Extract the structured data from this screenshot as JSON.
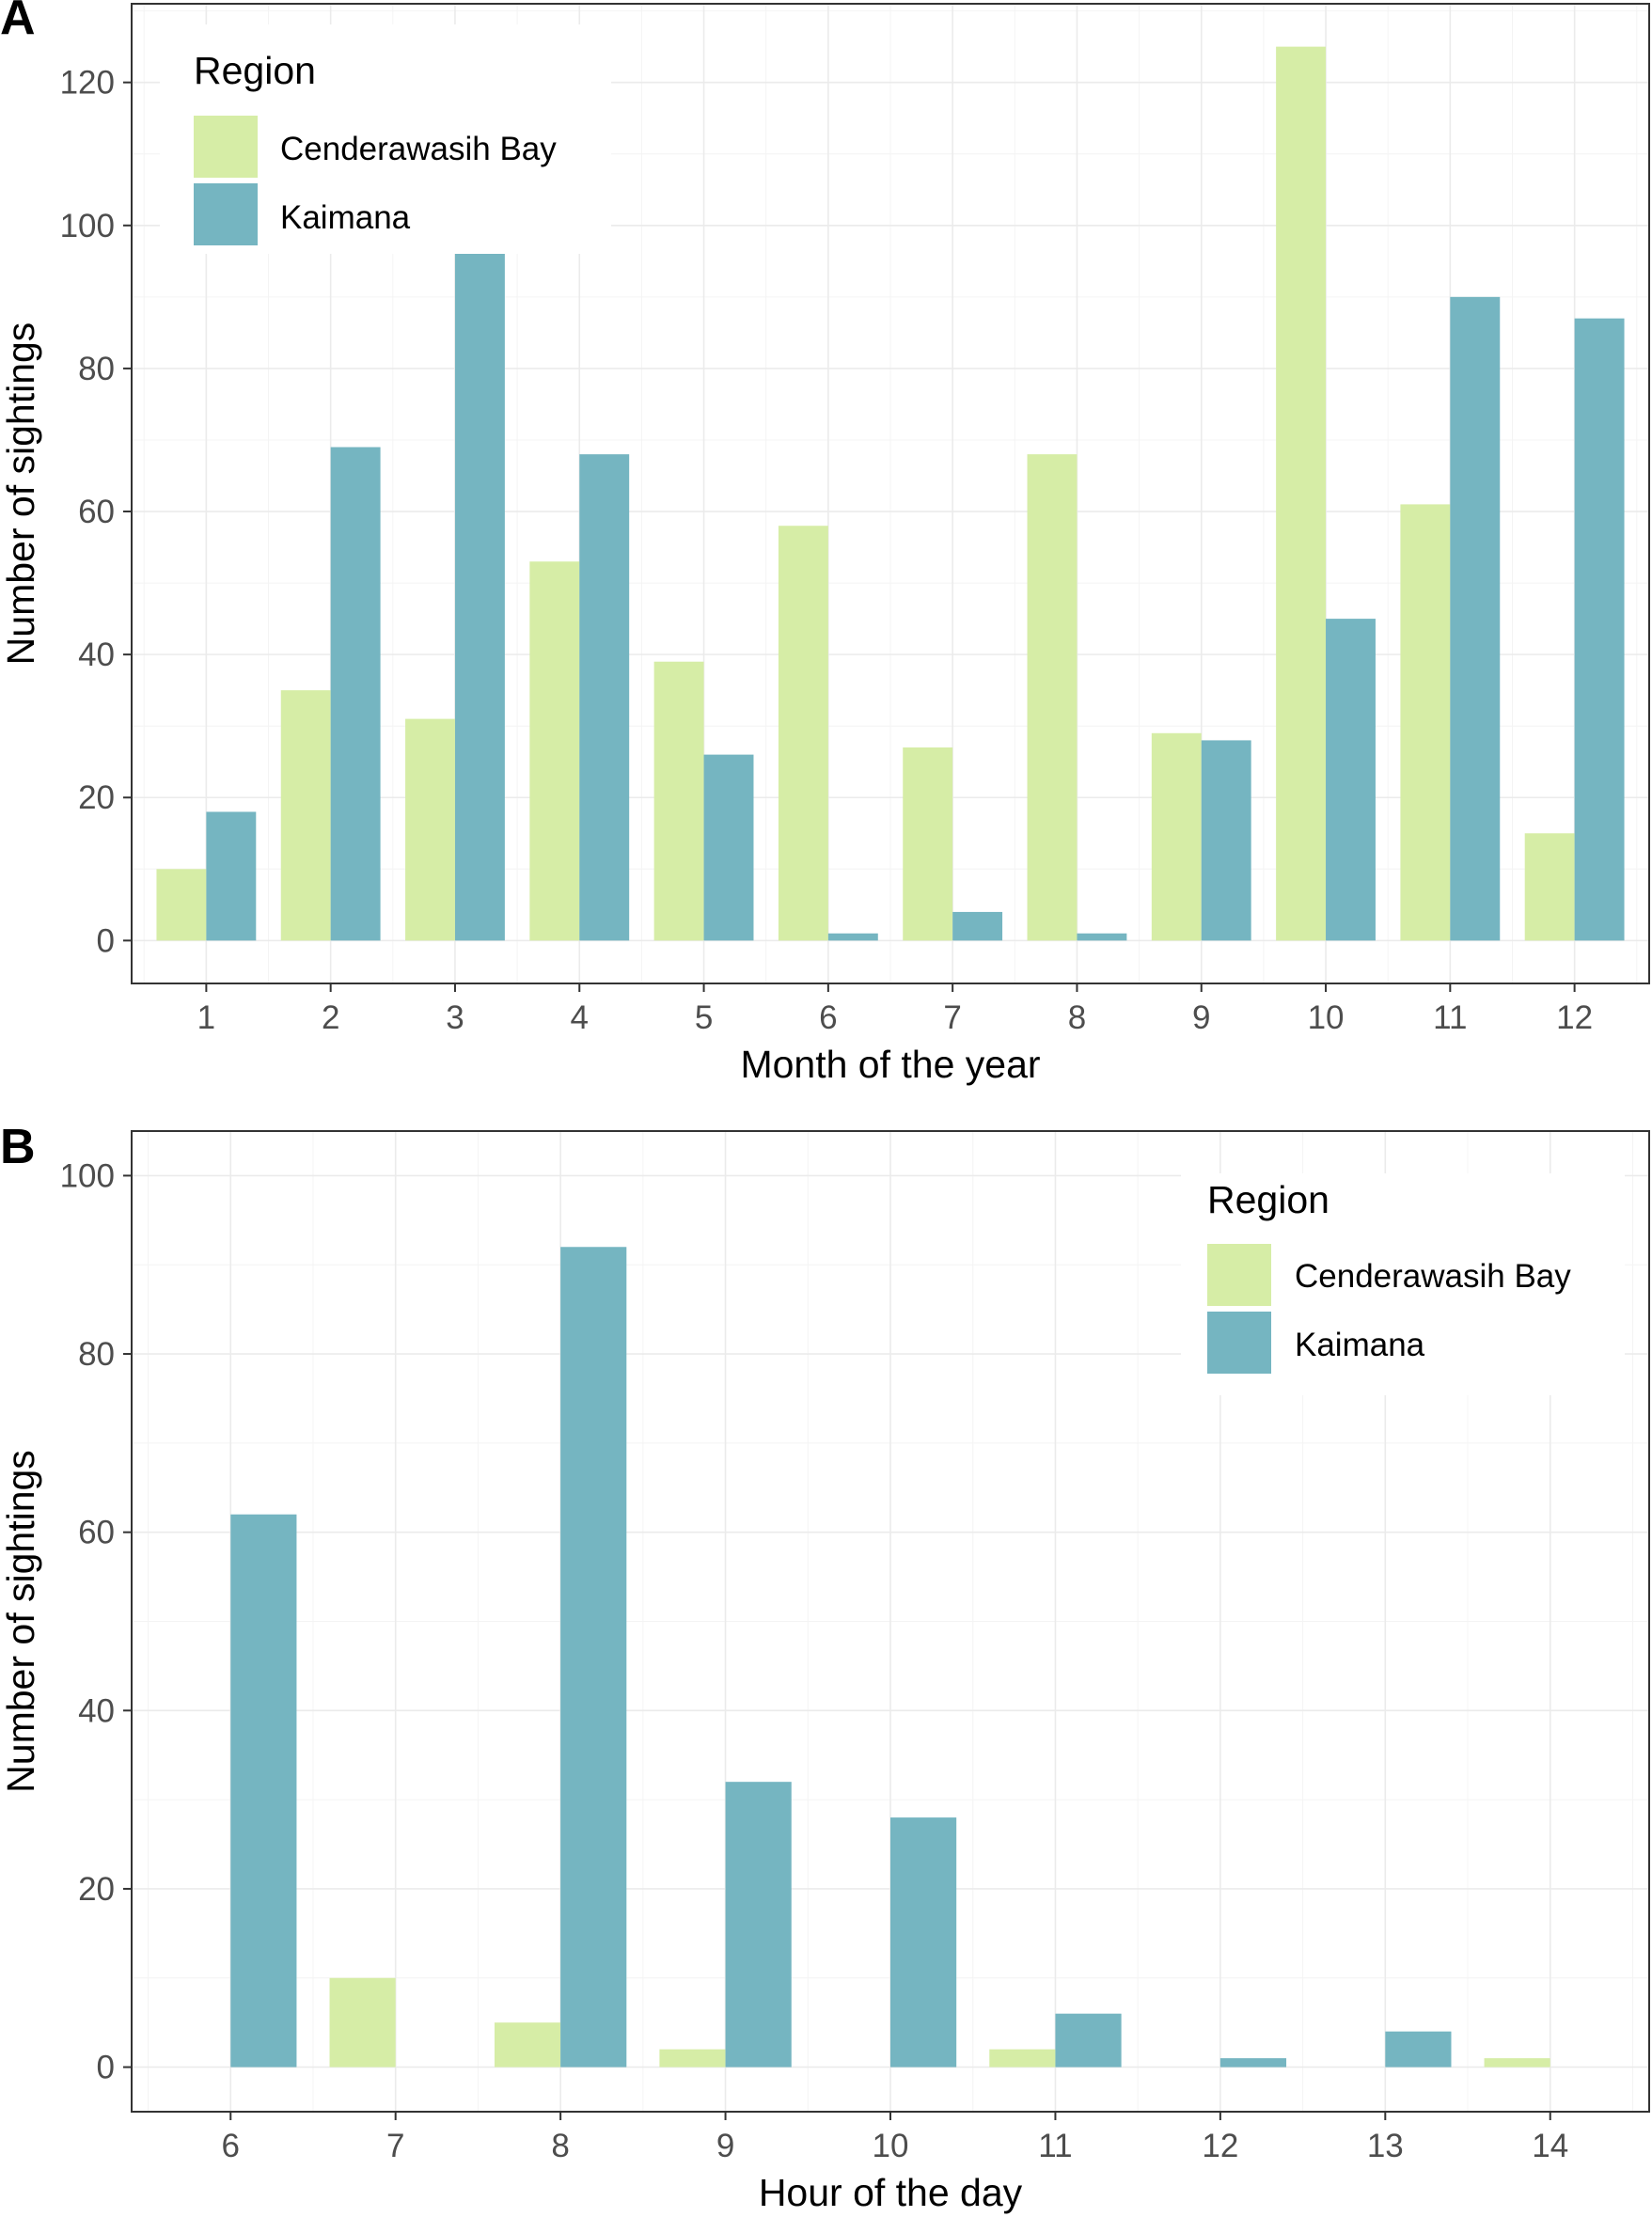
{
  "colors": {
    "Cenderawasih Bay": "#d6eda6",
    "Kaimana": "#75b5c1"
  },
  "chart_data": [
    {
      "panel": "A",
      "type": "bar",
      "xlabel": "Month of the year",
      "ylabel": "Number of sightings",
      "categories": [
        "1",
        "2",
        "3",
        "4",
        "5",
        "6",
        "7",
        "8",
        "9",
        "10",
        "11",
        "12"
      ],
      "series": [
        {
          "name": "Cenderawasih Bay",
          "values": [
            10,
            35,
            31,
            53,
            39,
            58,
            27,
            68,
            29,
            125,
            61,
            15
          ]
        },
        {
          "name": "Kaimana",
          "values": [
            18,
            69,
            97,
            68,
            26,
            1,
            4,
            1,
            28,
            45,
            90,
            87
          ]
        }
      ],
      "ylim": [
        -6,
        131
      ],
      "yticks": [
        0,
        20,
        40,
        60,
        80,
        100,
        120
      ],
      "legend": {
        "title": "Region",
        "entries": [
          "Cenderawasih Bay",
          "Kaimana"
        ],
        "position": "top-left"
      }
    },
    {
      "panel": "B",
      "type": "bar",
      "xlabel": "Hour of the day",
      "ylabel": "Number of sightings",
      "categories": [
        "6",
        "7",
        "8",
        "9",
        "10",
        "11",
        "12",
        "13",
        "14"
      ],
      "series": [
        {
          "name": "Cenderawasih Bay",
          "values": [
            0,
            10,
            5,
            2,
            0,
            2,
            0,
            0,
            1
          ]
        },
        {
          "name": "Kaimana",
          "values": [
            62,
            0,
            92,
            32,
            28,
            6,
            1,
            4,
            0
          ]
        }
      ],
      "ylim": [
        -5,
        105
      ],
      "yticks": [
        0,
        20,
        40,
        60,
        80,
        100
      ],
      "legend": {
        "title": "Region",
        "entries": [
          "Cenderawasih Bay",
          "Kaimana"
        ],
        "position": "top-right"
      }
    }
  ]
}
